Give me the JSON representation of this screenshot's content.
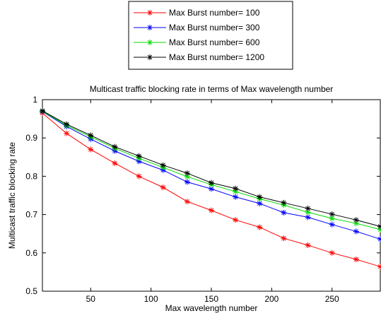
{
  "chart_data": {
    "type": "line",
    "title": "Multicast traffic blocking rate in terms of Max wavelength number",
    "xlabel": "Max wavelength number",
    "ylabel": "Multicast traffic blocking rate",
    "xlim": [
      10,
      290
    ],
    "ylim": [
      0.5,
      1.0
    ],
    "xticks": [
      50,
      100,
      150,
      200,
      250
    ],
    "yticks": [
      0.5,
      0.6,
      0.7,
      0.8,
      0.9,
      1.0
    ],
    "ytick_labels": [
      "0.5",
      "0.6",
      "0.7",
      "0.8",
      "0.9",
      "1"
    ],
    "grid": false,
    "legend_position": "top-center",
    "marker": "*",
    "x": [
      10,
      30,
      50,
      70,
      90,
      110,
      130,
      150,
      170,
      190,
      210,
      230,
      250,
      270,
      290
    ],
    "series": [
      {
        "name": "Max Burst number= 100",
        "color": "#ff0000",
        "values": [
          0.965,
          0.912,
          0.87,
          0.834,
          0.8,
          0.771,
          0.734,
          0.711,
          0.686,
          0.667,
          0.638,
          0.62,
          0.6,
          0.583,
          0.564
        ]
      },
      {
        "name": "Max Burst number= 300",
        "color": "#0000ff",
        "values": [
          0.969,
          0.93,
          0.897,
          0.866,
          0.839,
          0.816,
          0.785,
          0.767,
          0.746,
          0.729,
          0.705,
          0.693,
          0.674,
          0.656,
          0.636
        ]
      },
      {
        "name": "Max Burst number= 600",
        "color": "#00dd00",
        "values": [
          0.97,
          0.933,
          0.903,
          0.873,
          0.847,
          0.823,
          0.799,
          0.778,
          0.76,
          0.741,
          0.725,
          0.706,
          0.69,
          0.677,
          0.661
        ]
      },
      {
        "name": "Max Burst number= 1200",
        "color": "#000000",
        "values": [
          0.971,
          0.936,
          0.907,
          0.877,
          0.853,
          0.829,
          0.808,
          0.783,
          0.768,
          0.746,
          0.731,
          0.716,
          0.701,
          0.686,
          0.669
        ]
      }
    ]
  }
}
